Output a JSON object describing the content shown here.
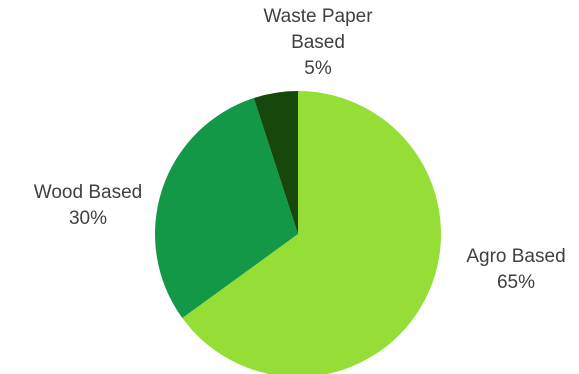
{
  "chart_data": {
    "type": "pie",
    "title": "",
    "categories": [
      "Agro Based",
      "Wood Based",
      "Waste Paper Based"
    ],
    "values": [
      65,
      30,
      5
    ],
    "value_labels": [
      "65%",
      "30%",
      "5%"
    ],
    "colors": [
      "#94de35",
      "#129847",
      "#18470c"
    ],
    "start": "12 o'clock",
    "direction": "clockwise",
    "legend": "none",
    "label_lines": [
      [
        "Agro Based"
      ],
      [
        "Wood Based"
      ],
      [
        "Waste Paper",
        "Based"
      ]
    ]
  }
}
